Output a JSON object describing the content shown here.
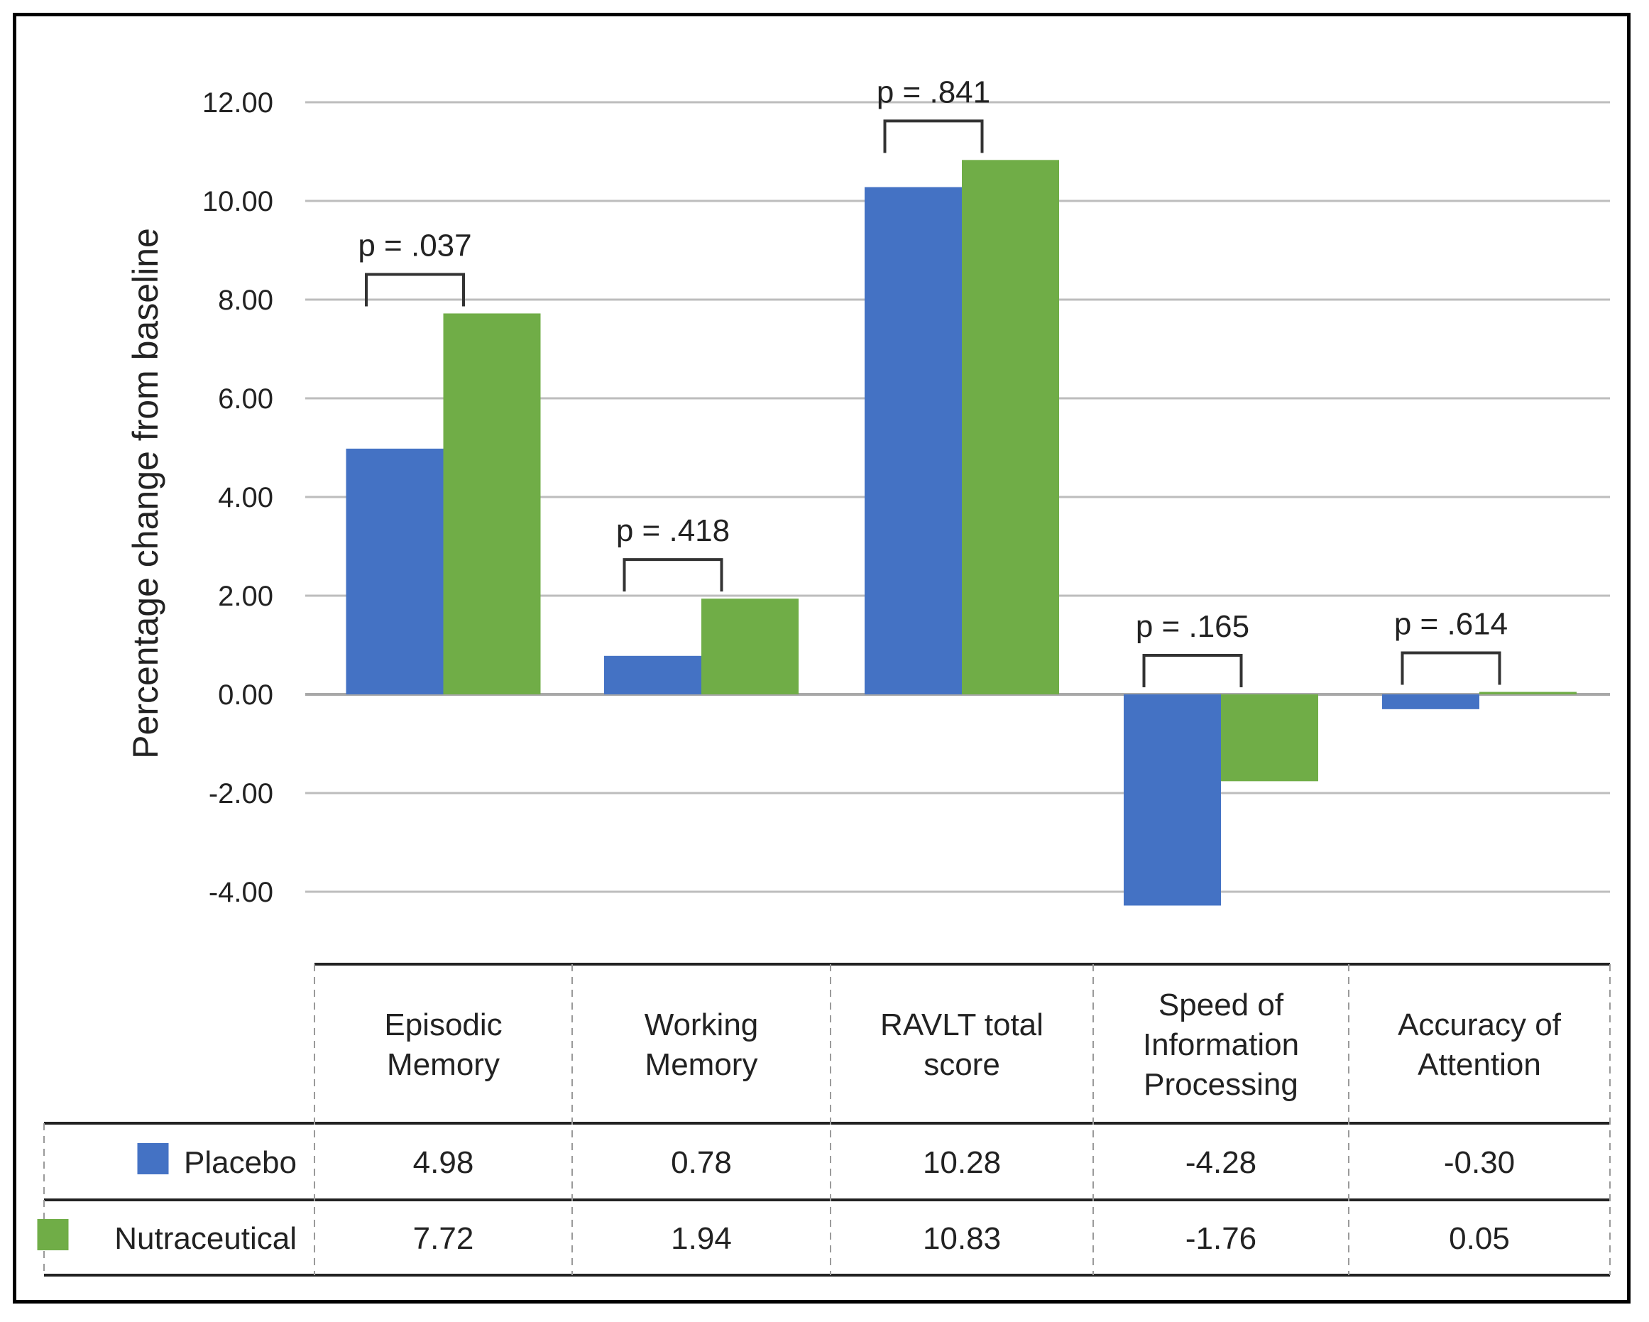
{
  "chart_data": {
    "type": "bar",
    "title": "",
    "xlabel": "",
    "ylabel": "Percentage change from baseline",
    "ylim": [
      -4,
      12
    ],
    "yticks": [
      "12.00",
      "10.00",
      "8.00",
      "6.00",
      "4.00",
      "2.00",
      "0.00",
      "-2.00",
      "-4.00"
    ],
    "grid": true,
    "categories": [
      [
        "Episodic",
        "Memory"
      ],
      [
        "Working",
        "Memory"
      ],
      [
        "RAVLT total",
        "score"
      ],
      [
        "Speed of",
        "Information",
        "Processing"
      ],
      [
        "Accuracy of",
        "Attention"
      ]
    ],
    "series": [
      {
        "name": "Placebo",
        "color": "#4472C4",
        "values": [
          4.98,
          0.78,
          10.28,
          -4.28,
          -0.3
        ],
        "labels": [
          "4.98",
          "0.78",
          "10.28",
          "-4.28",
          "-0.30"
        ]
      },
      {
        "name": "Nutraceutical",
        "color": "#70AD47",
        "values": [
          7.72,
          1.94,
          10.83,
          -1.76,
          0.05
        ],
        "labels": [
          "7.72",
          "1.94",
          "10.83",
          "-1.76",
          "0.05"
        ]
      }
    ],
    "annotations": [
      "p = .037",
      "p = .418",
      "p = .841",
      "p = .165",
      "p = .614"
    ],
    "legend": "data-table"
  }
}
